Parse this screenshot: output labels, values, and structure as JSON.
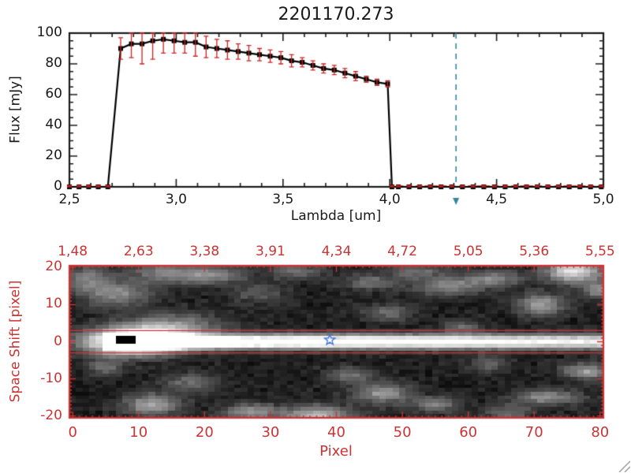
{
  "window": {
    "background": "#ffffff"
  },
  "chart_data": [
    {
      "type": "line",
      "title": "2201170.273",
      "xlabel": "Lambda [um]",
      "ylabel": "Flux [mJy]",
      "xlim": [
        2.5,
        5.0
      ],
      "ylim": [
        0,
        100
      ],
      "axis_color": "#1a1a1a",
      "line_color": "#000000",
      "marker": "filled-square",
      "error_color": "#cc2222",
      "x_ticks": [
        2.5,
        3.0,
        3.5,
        4.0,
        4.5,
        5.0
      ],
      "x_tick_labels": [
        "2,5",
        "3,0",
        "3,5",
        "4,0",
        "4,5",
        "5,0"
      ],
      "x_minor_step": 0.1,
      "y_ticks": [
        0,
        20,
        40,
        60,
        80,
        100
      ],
      "y_tick_labels": [
        "0",
        "20",
        "40",
        "60",
        "80",
        "100"
      ],
      "y_minor_step": 5,
      "vline": {
        "x": 4.31,
        "color": "#338899",
        "style": "dashed"
      },
      "zero_segment": {
        "y": 0,
        "x_from": 4.0,
        "x_to": 5.0,
        "color": "#cc2222",
        "style": "dashed"
      },
      "points": [
        [
          2.5,
          0,
          0.8
        ],
        [
          2.545,
          0,
          0.8
        ],
        [
          2.59,
          0,
          0.8
        ],
        [
          2.635,
          0,
          0.8
        ],
        [
          2.68,
          0,
          0.8
        ],
        [
          2.74,
          90,
          7
        ],
        [
          2.79,
          93,
          9
        ],
        [
          2.84,
          93,
          13
        ],
        [
          2.89,
          95,
          12
        ],
        [
          2.94,
          96,
          9
        ],
        [
          2.99,
          95,
          8
        ],
        [
          3.04,
          94,
          7
        ],
        [
          3.09,
          94,
          9
        ],
        [
          3.14,
          91,
          7
        ],
        [
          3.19,
          90,
          6
        ],
        [
          3.24,
          89,
          6
        ],
        [
          3.29,
          88,
          5
        ],
        [
          3.34,
          87,
          5
        ],
        [
          3.39,
          86,
          4
        ],
        [
          3.44,
          85,
          4
        ],
        [
          3.49,
          84,
          4
        ],
        [
          3.54,
          82,
          4
        ],
        [
          3.59,
          81,
          3
        ],
        [
          3.64,
          79,
          3
        ],
        [
          3.69,
          77,
          3
        ],
        [
          3.74,
          76,
          3
        ],
        [
          3.79,
          74,
          3
        ],
        [
          3.84,
          72,
          3
        ],
        [
          3.89,
          70,
          2
        ],
        [
          3.94,
          68,
          2
        ],
        [
          3.99,
          67,
          2
        ],
        [
          4.01,
          0,
          0.8
        ],
        [
          4.04,
          0,
          0.8
        ],
        [
          4.09,
          0,
          0.8
        ],
        [
          4.14,
          0,
          0.8
        ],
        [
          4.19,
          0,
          0.8
        ],
        [
          4.24,
          0,
          0.8
        ],
        [
          4.29,
          0,
          0.8
        ],
        [
          4.34,
          0,
          0.8
        ],
        [
          4.39,
          0,
          0.8
        ],
        [
          4.44,
          0,
          0.8
        ],
        [
          4.49,
          0,
          0.8
        ],
        [
          4.54,
          0,
          0.8
        ],
        [
          4.59,
          0,
          0.8
        ],
        [
          4.64,
          0,
          0.8
        ],
        [
          4.69,
          0,
          0.8
        ],
        [
          4.74,
          0,
          0.8
        ],
        [
          4.79,
          0,
          0.8
        ],
        [
          4.84,
          0,
          0.8
        ],
        [
          4.89,
          0,
          0.8
        ],
        [
          4.94,
          0,
          0.8
        ],
        [
          4.99,
          0,
          0.8
        ]
      ]
    },
    {
      "type": "heatmap",
      "xlabel": "Pixel",
      "ylabel": "Space Shift [pixel]",
      "axis_color": "#cc3333",
      "xlim": [
        -0.5,
        80.5
      ],
      "ylim": [
        -20.5,
        20.5
      ],
      "x_ticks": [
        0,
        10,
        20,
        30,
        40,
        50,
        60,
        70,
        80
      ],
      "x_tick_labels": [
        "0",
        "10",
        "20",
        "30",
        "40",
        "50",
        "60",
        "70",
        "80"
      ],
      "y_ticks": [
        20,
        10,
        0,
        -10,
        -20
      ],
      "y_tick_labels": [
        "20",
        "10",
        "0",
        "-10",
        "-20"
      ],
      "top_axis_labels": [
        "1,48",
        "2,63",
        "3,38",
        "3,91",
        "4,34",
        "4,72",
        "5,05",
        "5,36",
        "5,55"
      ],
      "top_axis_positions": [
        0,
        10,
        20,
        30,
        40,
        50,
        60,
        70,
        80
      ],
      "aperture_lines": {
        "y_values": [
          3,
          -3
        ],
        "color": "#cc3333"
      },
      "star_marker": {
        "x": 39,
        "y": 0.5,
        "color": "#4477dd"
      },
      "dark_marker_cells": [
        [
          7,
          0
        ],
        [
          8,
          0
        ],
        [
          9,
          0
        ],
        [
          7,
          1
        ],
        [
          8,
          1
        ],
        [
          9,
          1
        ]
      ],
      "grid": {
        "nx": 81,
        "ny": 41
      },
      "trace": {
        "y_center": 0,
        "sigma": 1.35,
        "x_start": 5,
        "amp_start": 1.25,
        "amp_end": 0.85
      },
      "sources": [
        [
          9,
          0,
          5,
          2.4,
          1.3
        ],
        [
          15,
          4,
          5,
          2.5,
          0.45
        ],
        [
          7,
          13,
          3.5,
          2.5,
          0.4
        ],
        [
          2,
          17,
          2.5,
          2.5,
          0.35
        ],
        [
          13,
          19,
          3,
          2,
          0.3
        ],
        [
          20,
          18,
          4,
          1.8,
          0.42
        ],
        [
          28,
          13,
          3,
          1.8,
          0.22
        ],
        [
          34,
          19,
          3,
          1.5,
          0.3
        ],
        [
          45,
          16,
          3,
          1.5,
          0.28
        ],
        [
          52,
          19,
          3,
          1.5,
          0.3
        ],
        [
          57,
          15,
          3.5,
          1.8,
          0.38
        ],
        [
          64,
          17,
          3,
          1.5,
          0.38
        ],
        [
          71,
          10,
          2.5,
          2,
          0.5
        ],
        [
          76,
          19,
          3,
          2,
          0.8
        ],
        [
          80,
          14,
          2,
          1.5,
          0.45
        ],
        [
          48,
          8,
          2.5,
          1.5,
          0.3
        ],
        [
          59,
          4,
          2,
          1.2,
          0.28
        ],
        [
          5,
          -7,
          2,
          1.5,
          0.28
        ],
        [
          12,
          -17,
          3,
          2,
          0.5
        ],
        [
          18,
          -11,
          3,
          2,
          0.28
        ],
        [
          27,
          -19,
          3,
          1.6,
          0.45
        ],
        [
          37,
          -20,
          3.5,
          2,
          0.6
        ],
        [
          42,
          -9,
          2.5,
          1.5,
          0.33
        ],
        [
          47,
          -14,
          3,
          2,
          0.45
        ],
        [
          55,
          -17,
          2.5,
          1.5,
          0.35
        ],
        [
          63,
          -6,
          2,
          1.5,
          0.25
        ],
        [
          66,
          -19,
          2.5,
          1.5,
          0.3
        ],
        [
          72,
          -15,
          3.5,
          1.5,
          0.42
        ],
        [
          78,
          -8,
          2.5,
          1.5,
          0.48
        ]
      ],
      "noise_amp": 0.09
    }
  ],
  "decorations": {
    "resize_grip": "//"
  }
}
